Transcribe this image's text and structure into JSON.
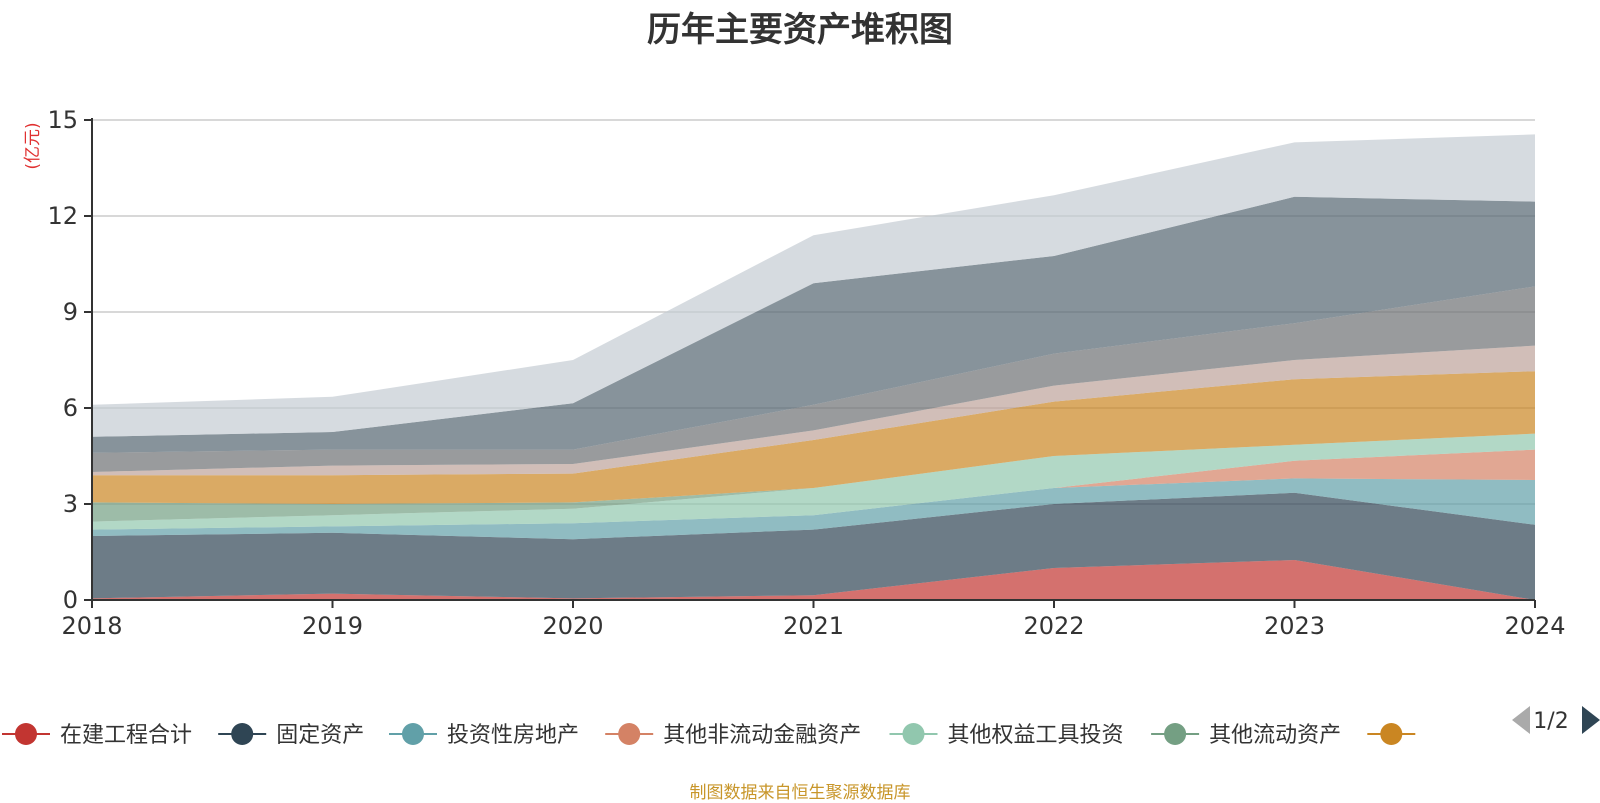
{
  "title": "历年主要资产堆积图",
  "footer": "制图数据来自恒生聚源数据库",
  "chart_data": {
    "type": "area",
    "stacked": true,
    "title": "历年主要资产堆积图",
    "ylabel": "(亿元)",
    "xlabel": "",
    "x": [
      "2018",
      "2019",
      "2020",
      "2021",
      "2022",
      "2023",
      "2024"
    ],
    "ylim": [
      0,
      15
    ],
    "yticks": [
      0,
      3,
      6,
      9,
      12,
      15
    ],
    "grid": true,
    "legend_position": "bottom",
    "legend_page": "1/2",
    "series": [
      {
        "name": "在建工程合计",
        "color": "#c23531",
        "values": [
          0.05,
          0.2,
          0.05,
          0.15,
          1.0,
          1.25,
          0.0
        ]
      },
      {
        "name": "固定资产",
        "color": "#2f4554",
        "values": [
          1.95,
          1.9,
          1.85,
          2.05,
          2.0,
          2.1,
          2.35
        ]
      },
      {
        "name": "投资性房地产",
        "color": "#61a0a8",
        "values": [
          0.2,
          0.2,
          0.5,
          0.45,
          0.5,
          0.45,
          1.4
        ]
      },
      {
        "name": "其他非流动金融资产",
        "color": "#d48265",
        "values": [
          0.0,
          0.0,
          0.0,
          0.0,
          0.0,
          0.55,
          0.95
        ]
      },
      {
        "name": "其他权益工具投资",
        "color": "#91c7ae",
        "values": [
          0.25,
          0.35,
          0.45,
          0.85,
          1.0,
          0.5,
          0.5
        ]
      },
      {
        "name": "其他流动资产",
        "color": "#749f83",
        "values": [
          0.6,
          0.35,
          0.2,
          0.0,
          0.0,
          0.0,
          0.0
        ]
      },
      {
        "name": "",
        "color": "#ca8622",
        "values": [
          0.85,
          0.9,
          0.9,
          1.5,
          1.7,
          2.05,
          1.95
        ]
      },
      {
        "name": "",
        "color": "#bda29a",
        "values": [
          0.1,
          0.3,
          0.3,
          0.3,
          0.5,
          0.6,
          0.8
        ]
      },
      {
        "name": "",
        "color": "#6e7074",
        "values": [
          0.6,
          0.5,
          0.45,
          0.8,
          1.0,
          1.15,
          1.85
        ]
      },
      {
        "name": "",
        "color": "#546570",
        "values": [
          0.5,
          0.55,
          1.45,
          3.8,
          3.05,
          3.95,
          2.65
        ]
      },
      {
        "name": "",
        "color": "#c4ccd3",
        "values": [
          1.0,
          1.1,
          1.35,
          1.5,
          1.9,
          1.7,
          2.1
        ]
      }
    ]
  }
}
